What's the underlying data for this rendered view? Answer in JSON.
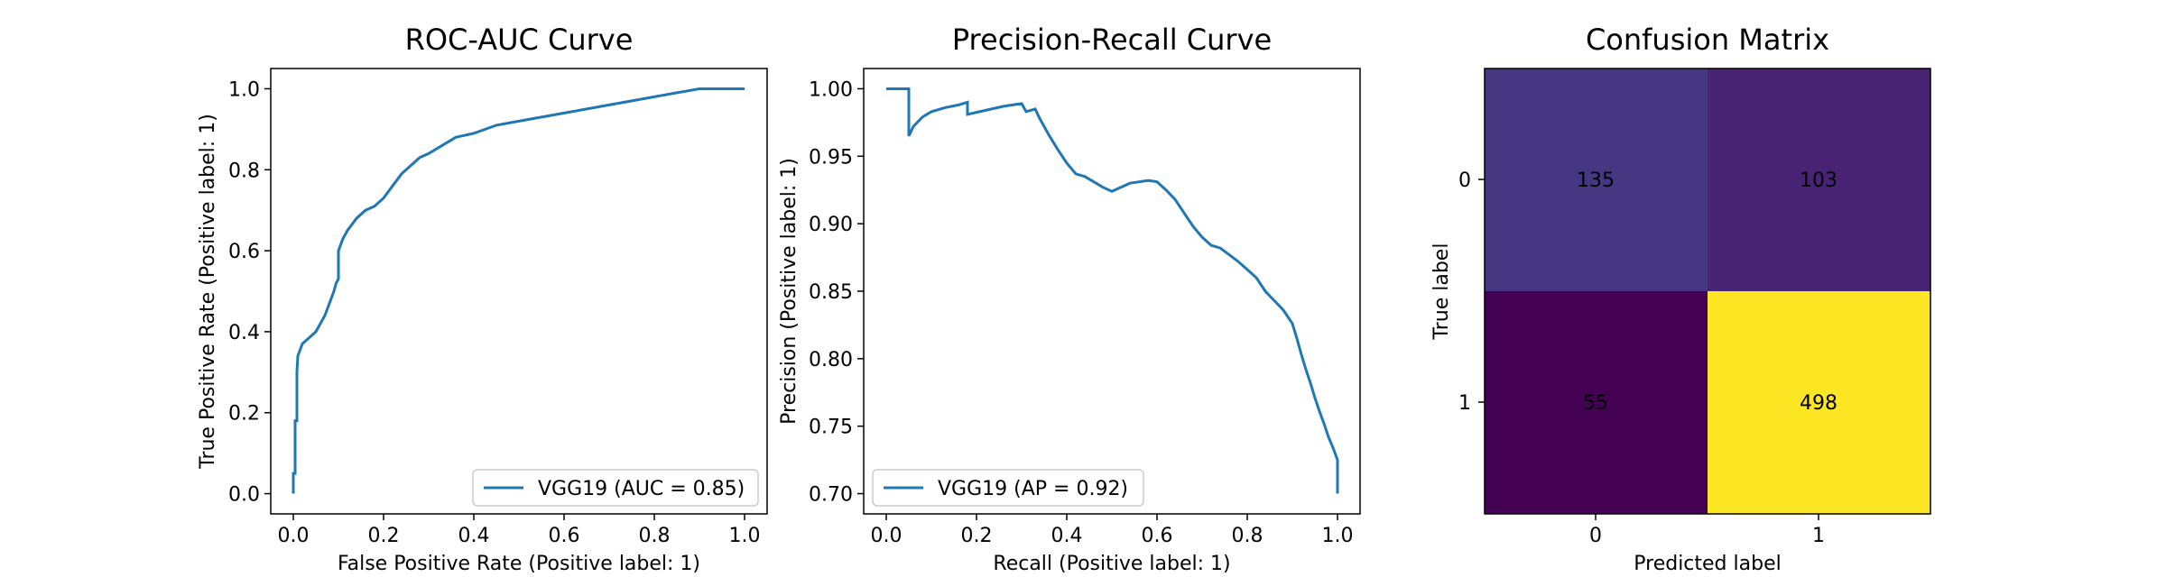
{
  "colors": {
    "line": "#1f77b4",
    "cm_cell_0_0": "#453781",
    "cm_cell_0_1": "#482374",
    "cm_cell_1_0": "#440154",
    "cm_cell_1_1": "#fde725",
    "cm_text_light": "#fde725",
    "cm_text_dark": "#440154"
  },
  "chart_data": [
    {
      "type": "line",
      "title": "ROC-AUC Curve",
      "xlabel": "False Positive Rate (Positive label: 1)",
      "ylabel": "True Positive Rate (Positive label: 1)",
      "xlim": [
        -0.05,
        1.05
      ],
      "ylim": [
        -0.05,
        1.05
      ],
      "xticks": [
        "0.0",
        "0.2",
        "0.4",
        "0.6",
        "0.8",
        "1.0"
      ],
      "yticks": [
        "0.0",
        "0.2",
        "0.4",
        "0.6",
        "0.8",
        "1.0"
      ],
      "legend": "lower-right",
      "series": [
        {
          "name": "VGG19 (AUC = 0.85)",
          "x": [
            0.0,
            0.0,
            0.004,
            0.004,
            0.008,
            0.008,
            0.01,
            0.02,
            0.03,
            0.05,
            0.07,
            0.08,
            0.09,
            0.095,
            0.1,
            0.1,
            0.11,
            0.12,
            0.14,
            0.16,
            0.18,
            0.2,
            0.22,
            0.24,
            0.26,
            0.28,
            0.3,
            0.33,
            0.36,
            0.4,
            0.45,
            0.5,
            0.55,
            0.6,
            0.65,
            0.7,
            0.75,
            0.8,
            0.85,
            0.9,
            0.95,
            1.0
          ],
          "y": [
            0.0,
            0.05,
            0.05,
            0.18,
            0.18,
            0.3,
            0.34,
            0.37,
            0.38,
            0.4,
            0.44,
            0.47,
            0.5,
            0.52,
            0.53,
            0.6,
            0.63,
            0.65,
            0.68,
            0.7,
            0.71,
            0.73,
            0.76,
            0.79,
            0.81,
            0.83,
            0.84,
            0.86,
            0.88,
            0.89,
            0.91,
            0.92,
            0.93,
            0.94,
            0.95,
            0.96,
            0.97,
            0.98,
            0.99,
            1.0,
            1.0,
            1.0
          ]
        }
      ]
    },
    {
      "type": "line",
      "title": "Precision-Recall Curve",
      "xlabel": "Recall (Positive label: 1)",
      "ylabel": "Precision (Positive label: 1)",
      "xlim": [
        -0.05,
        1.05
      ],
      "ylim": [
        0.685,
        1.015
      ],
      "xticks": [
        "0.0",
        "0.2",
        "0.4",
        "0.6",
        "0.8",
        "1.0"
      ],
      "yticks": [
        "0.70",
        "0.75",
        "0.80",
        "0.85",
        "0.90",
        "0.95",
        "1.00"
      ],
      "legend": "lower-left",
      "series": [
        {
          "name": "VGG19 (AP = 0.92)",
          "x": [
            0.0,
            0.05,
            0.05,
            0.06,
            0.08,
            0.1,
            0.13,
            0.16,
            0.18,
            0.18,
            0.22,
            0.26,
            0.3,
            0.31,
            0.33,
            0.34,
            0.36,
            0.38,
            0.4,
            0.42,
            0.44,
            0.46,
            0.48,
            0.5,
            0.52,
            0.54,
            0.56,
            0.58,
            0.6,
            0.62,
            0.64,
            0.66,
            0.68,
            0.7,
            0.72,
            0.74,
            0.76,
            0.78,
            0.8,
            0.82,
            0.84,
            0.86,
            0.88,
            0.9,
            0.91,
            0.92,
            0.93,
            0.94,
            0.95,
            0.96,
            0.97,
            0.98,
            0.99,
            1.0,
            1.0
          ],
          "y": [
            1.0,
            1.0,
            0.965,
            0.972,
            0.979,
            0.983,
            0.986,
            0.988,
            0.99,
            0.981,
            0.984,
            0.987,
            0.989,
            0.983,
            0.985,
            0.978,
            0.966,
            0.955,
            0.945,
            0.937,
            0.935,
            0.931,
            0.927,
            0.924,
            0.927,
            0.93,
            0.931,
            0.932,
            0.931,
            0.925,
            0.918,
            0.908,
            0.898,
            0.89,
            0.884,
            0.882,
            0.877,
            0.872,
            0.866,
            0.86,
            0.85,
            0.843,
            0.836,
            0.826,
            0.815,
            0.803,
            0.792,
            0.782,
            0.771,
            0.761,
            0.752,
            0.742,
            0.734,
            0.725,
            0.7
          ]
        }
      ]
    },
    {
      "type": "heatmap",
      "title": "Confusion Matrix",
      "xlabel": "Predicted label",
      "ylabel": "True label",
      "xticks": [
        "0",
        "1"
      ],
      "yticks": [
        "0",
        "1"
      ],
      "cells": [
        [
          "135",
          "103"
        ],
        [
          "55",
          "498"
        ]
      ]
    }
  ]
}
